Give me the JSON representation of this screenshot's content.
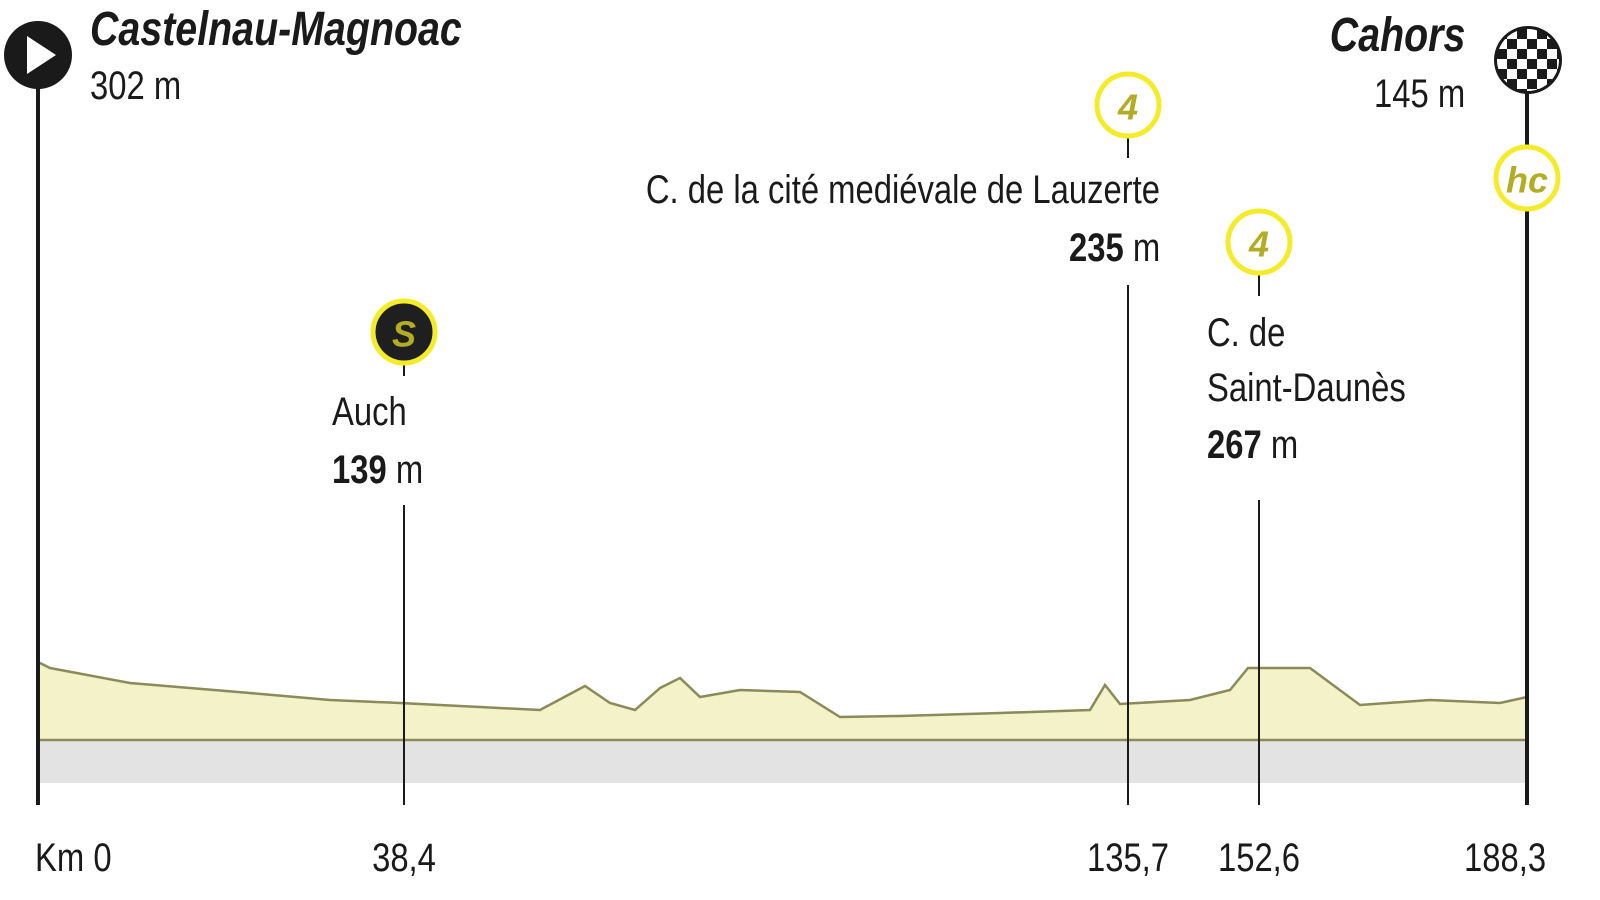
{
  "start": {
    "name": "Castelnau-Magnoac",
    "altitude": "302 m"
  },
  "finish": {
    "name": "Cahors",
    "altitude": "145 m",
    "category": "hc"
  },
  "points": [
    {
      "category": "S",
      "name_lines": [
        "Auch"
      ],
      "altitude_value": "139",
      "altitude_unit": "m"
    },
    {
      "category": "4",
      "name_lines": [
        "C. de la cité mediévale de Lauzerte"
      ],
      "altitude_value": "235",
      "altitude_unit": "m"
    },
    {
      "category": "4",
      "name_lines": [
        "C. de",
        "Saint-Daunès"
      ],
      "altitude_value": "267",
      "altitude_unit": "m"
    }
  ],
  "km_labels": [
    "Km 0",
    "38,4",
    "135,7",
    "152,6",
    "188,3"
  ]
}
